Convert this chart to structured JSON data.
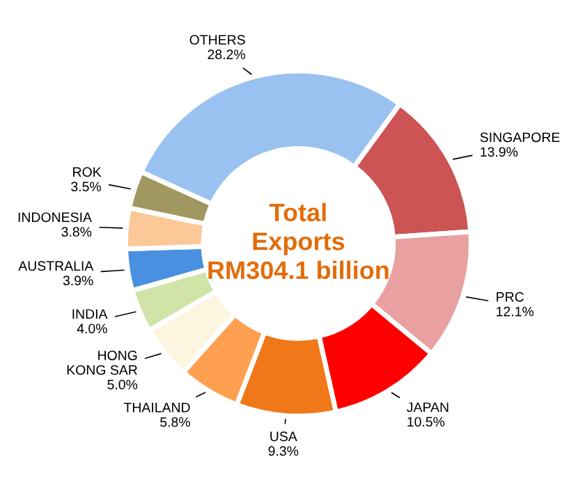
{
  "chart_data": {
    "type": "donut",
    "categories": [
      "OTHERS",
      "SINGAPORE",
      "PRC",
      "JAPAN",
      "USA",
      "THAILAND",
      "HONG\nKONG SAR",
      "INDIA",
      "AUSTRALIA",
      "INDONESIA",
      "ROK"
    ],
    "values": [
      28.2,
      13.9,
      12.1,
      10.5,
      9.3,
      5.8,
      5.0,
      4.0,
      3.9,
      3.8,
      3.5
    ],
    "value_labels": [
      "28.2%",
      "13.9%",
      "12.1%",
      "10.5%",
      "9.3%",
      "5.8%",
      "5.0%",
      "4.0%",
      "3.9%",
      "3.8%",
      "3.5%"
    ],
    "colors": [
      "#99c2f0",
      "#cd5454",
      "#e8a0a0",
      "#ff0000",
      "#f07818",
      "#ffa050",
      "#fdf5e0",
      "#d0e4a8",
      "#4a90e0",
      "#fcc898",
      "#a09860"
    ],
    "annotations": [
      "Total\nExports\nRM304.1 billion"
    ],
    "legend": false
  }
}
